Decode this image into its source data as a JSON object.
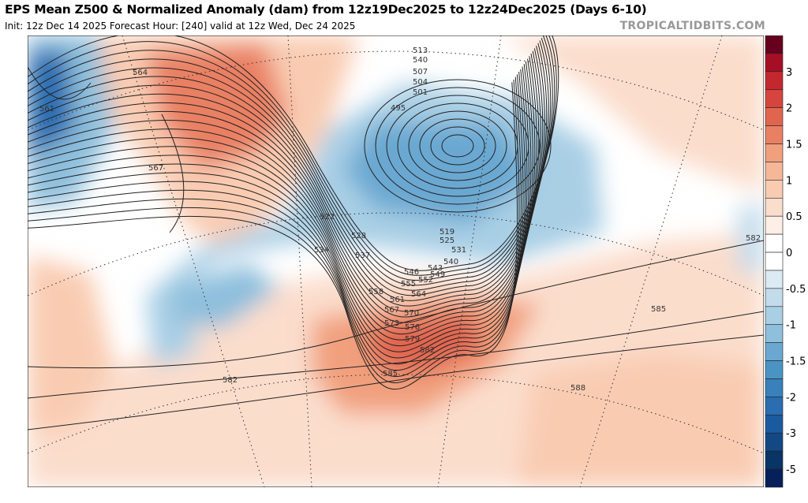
{
  "header": {
    "title": "EPS Mean Z500 & Normalized Anomaly (dam) from 12z19Dec2025 to 12z24Dec2025 (Days 6-10)",
    "subtitle": "Init: 12z Dec 14 2025   Forecast Hour: [240]   valid at 12z Wed, Dec 24 2025",
    "brand": "TROPICALTIDBITS.COM"
  },
  "colorbar": {
    "colors": [
      "#67001f",
      "#a50f26",
      "#c4282f",
      "#d6453d",
      "#e0654f",
      "#e98064",
      "#f1a07e",
      "#f6b799",
      "#f9ccb2",
      "#fbddcc",
      "#fdeee6",
      "#ffffff",
      "#ffffff",
      "#dceaf3",
      "#c3dcec",
      "#a9cfe5",
      "#8ebfdd",
      "#6aa8d2",
      "#4a94c4",
      "#3a80ba",
      "#2a6db1",
      "#1c5aa0",
      "#134885",
      "#083565",
      "#06205a"
    ],
    "labels": [
      "3",
      "2",
      "1.5",
      "1",
      "0.5",
      "0",
      "-0.5",
      "-1",
      "-1.5",
      "-2",
      "-3",
      "-5"
    ]
  },
  "map": {
    "contour_labels": [
      "513",
      "540",
      "507",
      "504",
      "501",
      "495",
      "564",
      "561",
      "567",
      "522",
      "528",
      "534",
      "537",
      "519",
      "525",
      "531",
      "540",
      "543",
      "546",
      "549",
      "552",
      "555",
      "558",
      "561",
      "564",
      "567",
      "570",
      "573",
      "576",
      "579",
      "582",
      "585",
      "582",
      "588",
      "582",
      "585"
    ]
  }
}
